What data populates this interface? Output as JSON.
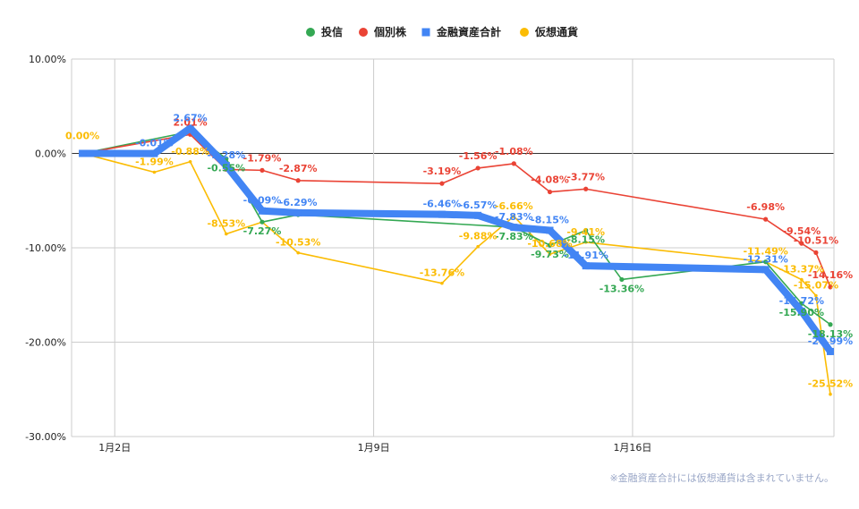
{
  "chart_data": {
    "type": "line",
    "footnote": "※金融資産合計には仮想通貨は含まれていません。",
    "ylim": [
      -30,
      10
    ],
    "y_ticks": [
      10,
      0,
      -10,
      -20,
      -30
    ],
    "y_tick_labels": [
      "10.00%",
      "0.00%",
      "-10.00%",
      "-20.00%",
      "-30.00%"
    ],
    "x_range": [
      0.3,
      21.5
    ],
    "x_ticks": [
      1.5,
      8.7,
      15.9
    ],
    "x_tick_labels": [
      "1月2日",
      "1月9日",
      "1月16日"
    ],
    "grid": true,
    "legend_position": "top-center",
    "series": [
      {
        "name": "投信",
        "color": "#34a853",
        "type": "line-marker",
        "x": [
          0.6,
          3.6,
          4.6,
          5.6,
          6.6,
          12.6,
          13.6,
          14.6,
          15.6,
          19.6,
          20.6,
          21.4
        ],
        "values": [
          0.0,
          2.3,
          -0.55,
          -7.27,
          -6.5,
          -7.83,
          -9.73,
          -8.15,
          -13.36,
          -11.49,
          -15.9,
          -18.13
        ],
        "labels": [
          "",
          "",
          "-0.55%",
          "-7.27%",
          "",
          "-7.83%",
          "-9.73%",
          "-8.15%",
          "-13.36%",
          "",
          "-15.90%",
          "-18.13%"
        ]
      },
      {
        "name": "個別株",
        "color": "#ea4335",
        "type": "line-marker",
        "x": [
          0.6,
          3.6,
          4.6,
          5.6,
          6.6,
          10.6,
          11.6,
          12.6,
          13.6,
          14.6,
          19.6,
          20.6,
          21.0,
          21.4
        ],
        "values": [
          0.0,
          2.01,
          -1.7,
          -1.79,
          -2.87,
          -3.19,
          -1.56,
          -1.08,
          -4.08,
          -3.77,
          -6.98,
          -9.54,
          -10.51,
          -14.16
        ],
        "labels": [
          "",
          "2.01%",
          "",
          "-1.79%",
          "-2.87%",
          "-3.19%",
          "-1.56%",
          "-1.08%",
          "-4.08%",
          "-3.77%",
          "-6.98%",
          "-9.54%",
          "-10.51%",
          "-14.16%"
        ]
      },
      {
        "name": "金融資産合計",
        "color": "#4285f4",
        "type": "thick-line",
        "x": [
          0.6,
          2.6,
          3.6,
          4.6,
          5.6,
          6.6,
          10.6,
          11.6,
          12.6,
          13.6,
          14.6,
          19.6,
          20.6,
          21.4
        ],
        "values": [
          0.0,
          -0.01,
          2.67,
          -1.28,
          -6.09,
          -6.29,
          -6.46,
          -6.57,
          -7.83,
          -8.15,
          -11.91,
          -12.31,
          -16.72,
          -20.99
        ],
        "labels": [
          "",
          "-0.01%",
          "2.67%",
          "-1.28%",
          "-6.09%",
          "-6.29%",
          "-6.46%",
          "-6.57%",
          "-7.83%",
          "-8.15%",
          "-11.91%",
          "-12.31%",
          "-16.72%",
          "-20.99%"
        ]
      },
      {
        "name": "仮想通貨",
        "color": "#fbbc04",
        "type": "line",
        "x": [
          0.6,
          2.6,
          3.6,
          4.6,
          5.6,
          6.6,
          10.6,
          11.6,
          12.6,
          13.6,
          14.6,
          19.6,
          20.6,
          21.0,
          21.4
        ],
        "values": [
          0.0,
          -1.99,
          -0.88,
          -8.53,
          -7.27,
          -10.53,
          -13.76,
          -9.88,
          -6.66,
          -10.68,
          -9.41,
          -11.49,
          -13.37,
          -15.07,
          -25.52
        ],
        "labels": [
          "0.00%",
          "-1.99%",
          "-0.88%",
          "-8.53%",
          "",
          "-10.53%",
          "-13.76%",
          "-9.88%",
          "-6.66%",
          "-10.68%",
          "-9.41%",
          "-11.49%",
          "-13.37%",
          "-15.07%",
          "-25.52%"
        ]
      }
    ]
  }
}
